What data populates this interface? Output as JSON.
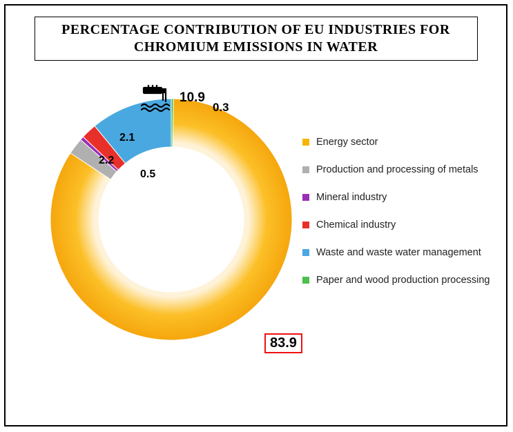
{
  "title_line1": "PERCENTAGE CONTRIBUTION OF EU INDUSTRIES FOR",
  "title_line2": "CHROMIUM EMISSIONS IN WATER",
  "chart": {
    "type": "donut",
    "inner_radius_ratio": 0.6,
    "rotation_start_deg": -90,
    "background_color": "#ffffff",
    "frame_border_color": "#000000",
    "slices": [
      {
        "key": "paper",
        "label": "Paper and wood production processing",
        "value": 0.3,
        "color": "#4dbf4d",
        "value_text": "0.3"
      },
      {
        "key": "energy",
        "label": "Energy sector",
        "value": 83.9,
        "color": "#f7b500",
        "value_text": "83.9"
      },
      {
        "key": "metals",
        "label": "Production and processing of metals",
        "value": 2.2,
        "color": "#b0b0b0",
        "value_text": "2.2"
      },
      {
        "key": "mineral",
        "label": "Mineral industry",
        "value": 0.5,
        "color": "#9b30b5",
        "value_text": "0.5"
      },
      {
        "key": "chemical",
        "label": "Chemical industry",
        "value": 2.1,
        "color": "#e8302a",
        "value_text": "2.1"
      },
      {
        "key": "waste",
        "label": "Waste and waste water management",
        "value": 10.9,
        "color": "#4aa8e0",
        "value_text": "10.9"
      }
    ],
    "legend_order": [
      "energy",
      "metals",
      "mineral",
      "chemical",
      "waste",
      "paper"
    ],
    "energy_gradient": {
      "inner": "#fef3d9",
      "mid": "#fcbf27",
      "outer": "#f29a00"
    },
    "value_label_fontsize": 17,
    "title_fontsize": 20,
    "highlight_key": "energy",
    "highlight_border_color": "#e11111"
  }
}
